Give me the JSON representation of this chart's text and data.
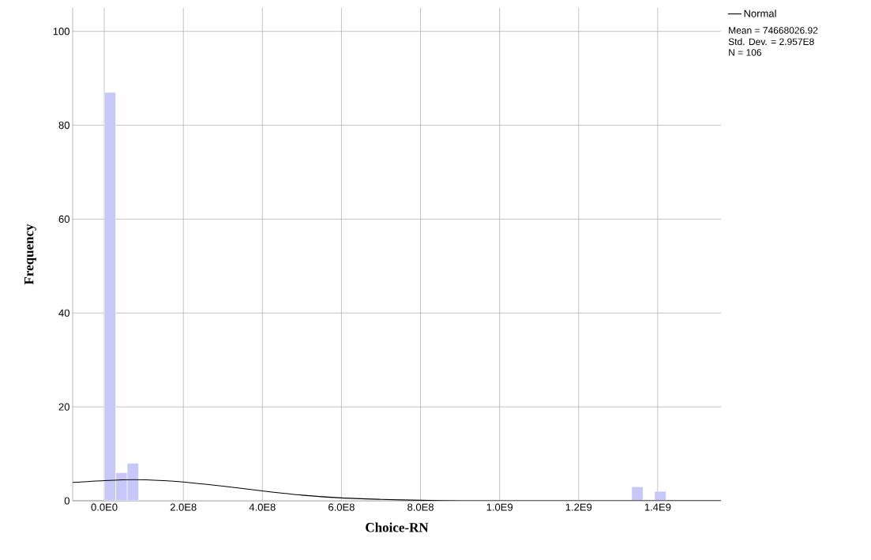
{
  "chart_data": {
    "type": "histogram",
    "xlabel": "Choice-RN",
    "ylabel": "Frequency",
    "series": [
      {
        "color": "#c8c8f8",
        "bins": [
          0,
          29000000,
          58000000,
          87000000,
          116000000,
          145000000,
          174000000,
          203000000,
          232000000,
          261000000,
          290000000,
          319000000,
          348000000,
          377000000,
          406000000,
          435000000,
          464000000,
          493000000,
          522000000,
          551000000,
          580000000,
          609000000,
          638000000,
          667000000,
          696000000,
          725000000,
          754000000,
          783000000,
          812000000,
          841000000,
          870000000,
          899000000,
          928000000,
          957000000,
          986000000,
          1015000000,
          1044000000,
          1073000000,
          1102000000,
          1131000000,
          1160000000,
          1189000000,
          1218000000,
          1247000000,
          1276000000,
          1305000000,
          1334000000,
          1363000000,
          1392000000,
          1421000000
        ],
        "values": [
          87,
          6,
          8,
          0,
          0,
          0,
          0,
          0,
          0,
          0,
          0,
          0,
          0,
          0,
          0,
          0,
          0,
          0,
          0,
          0,
          0,
          0,
          0,
          0,
          0,
          0,
          0,
          0,
          0,
          0,
          0,
          0,
          0,
          0,
          0,
          0,
          0,
          0,
          0,
          0,
          0,
          0,
          0,
          0,
          0,
          0,
          3,
          0,
          2
        ]
      },
      {
        "type": "line",
        "name": "Normal",
        "color": "#000000",
        "x": [
          -80000000,
          0,
          75000000,
          150000000,
          200000000,
          300000000,
          400000000,
          500000000,
          600000000,
          700000000,
          800000000,
          900000000,
          1000000000,
          1200000000,
          1400000000,
          1560000000
        ],
        "values": [
          3.9,
          4.3,
          4.5,
          4.3,
          4.0,
          3.1,
          2.1,
          1.2,
          0.6,
          0.3,
          0.1,
          0,
          0,
          0,
          0,
          0
        ]
      }
    ],
    "xlim": [
      -80000000,
      1560000000
    ],
    "ylim": [
      0,
      105
    ],
    "xticks": [
      {
        "value": 0,
        "label": "0.0E0"
      },
      {
        "value": 200000000,
        "label": "2.0E8"
      },
      {
        "value": 400000000,
        "label": "4.0E8"
      },
      {
        "value": 600000000,
        "label": "6.0E8"
      },
      {
        "value": 800000000,
        "label": "8.0E8"
      },
      {
        "value": 1000000000,
        "label": "1.0E9"
      },
      {
        "value": 1200000000,
        "label": "1.2E9"
      },
      {
        "value": 1400000000,
        "label": "1.4E9"
      }
    ],
    "yticks": [
      0,
      20,
      40,
      60,
      80,
      100
    ],
    "grid": true,
    "legend": "top right",
    "annotations": [
      "Mean = 74668026.92",
      "Std. Dev. = 2.957E8",
      "N = 106"
    ]
  }
}
